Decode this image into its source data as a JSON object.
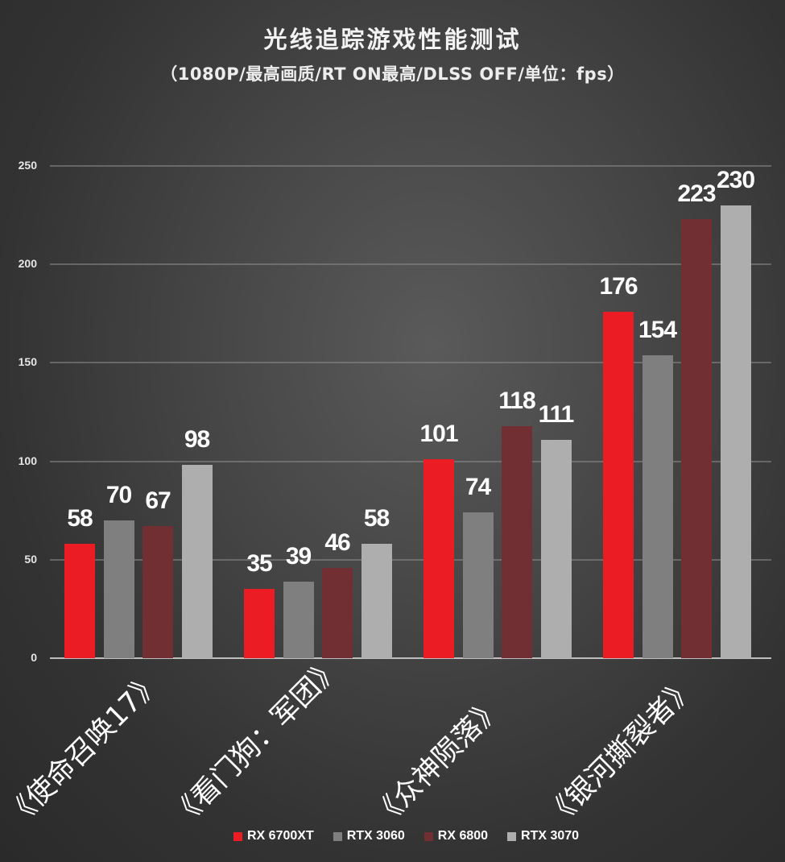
{
  "title": "光线追踪游戏性能测试",
  "subtitle": "（1080P/最高画质/RT ON最高/DLSS OFF/单位：fps）",
  "legend": [
    {
      "label": "RX 6700XT",
      "color": "#ec1c24"
    },
    {
      "label": "RTX 3060",
      "color": "#7f7f7f"
    },
    {
      "label": "RX 6800",
      "color": "#722f33"
    },
    {
      "label": "RTX 3070",
      "color": "#aeaeae"
    }
  ],
  "yticks": [
    "250",
    "200",
    "150",
    "100",
    "50",
    "0"
  ],
  "categories": [
    "《使命召唤17》",
    "《看门狗：军团》",
    "《众神陨落》",
    "《银河撕裂者》"
  ],
  "values": {
    "g0": [
      "58",
      "70",
      "67",
      "98"
    ],
    "g1": [
      "35",
      "39",
      "46",
      "58"
    ],
    "g2": [
      "101",
      "74",
      "118",
      "111"
    ],
    "g3": [
      "176",
      "154",
      "223",
      "230"
    ]
  },
  "chart_data": {
    "type": "bar",
    "title": "光线追踪游戏性能测试",
    "subtitle": "（1080P/最高画质/RT ON最高/DLSS OFF/单位：fps）",
    "categories": [
      "《使命召唤17》",
      "《看门狗：军团》",
      "《众神陨落》",
      "《银河撕裂者》"
    ],
    "series": [
      {
        "name": "RX 6700XT",
        "color": "#ec1c24",
        "values": [
          58,
          35,
          101,
          176
        ]
      },
      {
        "name": "RTX 3060",
        "color": "#7f7f7f",
        "values": [
          70,
          39,
          74,
          154
        ]
      },
      {
        "name": "RX 6800",
        "color": "#722f33",
        "values": [
          67,
          46,
          118,
          223
        ]
      },
      {
        "name": "RTX 3070",
        "color": "#aeaeae",
        "values": [
          98,
          58,
          111,
          230
        ]
      }
    ],
    "xlabel": "",
    "ylabel": "",
    "ylim": [
      0,
      250
    ],
    "yticks": [
      0,
      50,
      100,
      150,
      200,
      250
    ],
    "grid": true,
    "legend_position": "bottom",
    "data_labels": true
  }
}
